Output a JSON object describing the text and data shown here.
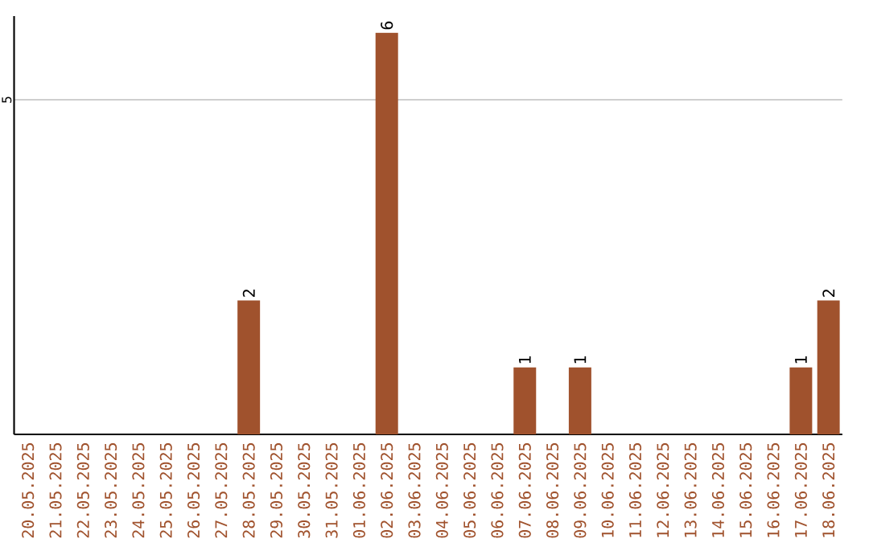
{
  "chart_data": {
    "type": "bar",
    "categories": [
      "20.05.2025",
      "21.05.2025",
      "22.05.2025",
      "23.05.2025",
      "24.05.2025",
      "25.05.2025",
      "26.05.2025",
      "27.05.2025",
      "28.05.2025",
      "29.05.2025",
      "30.05.2025",
      "31.05.2025",
      "01.06.2025",
      "02.06.2025",
      "03.06.2025",
      "04.06.2025",
      "05.06.2025",
      "06.06.2025",
      "07.06.2025",
      "08.06.2025",
      "09.06.2025",
      "10.06.2025",
      "11.06.2025",
      "12.06.2025",
      "13.06.2025",
      "14.06.2025",
      "15.06.2025",
      "16.06.2025",
      "17.06.2025",
      "18.06.2025"
    ],
    "values": [
      0,
      0,
      0,
      0,
      0,
      0,
      0,
      0,
      2,
      0,
      0,
      0,
      0,
      6,
      0,
      0,
      0,
      0,
      1,
      0,
      1,
      0,
      0,
      0,
      0,
      0,
      0,
      0,
      1,
      2
    ],
    "value_labels": [
      null,
      null,
      null,
      null,
      null,
      null,
      null,
      null,
      "2",
      null,
      null,
      null,
      null,
      "6",
      null,
      null,
      null,
      null,
      "1",
      null,
      "1",
      null,
      null,
      null,
      null,
      null,
      null,
      null,
      "1",
      "2"
    ],
    "color": "#a0522d",
    "ylim": [
      0,
      6.25
    ],
    "yticks": [
      5
    ],
    "grid": "y"
  }
}
